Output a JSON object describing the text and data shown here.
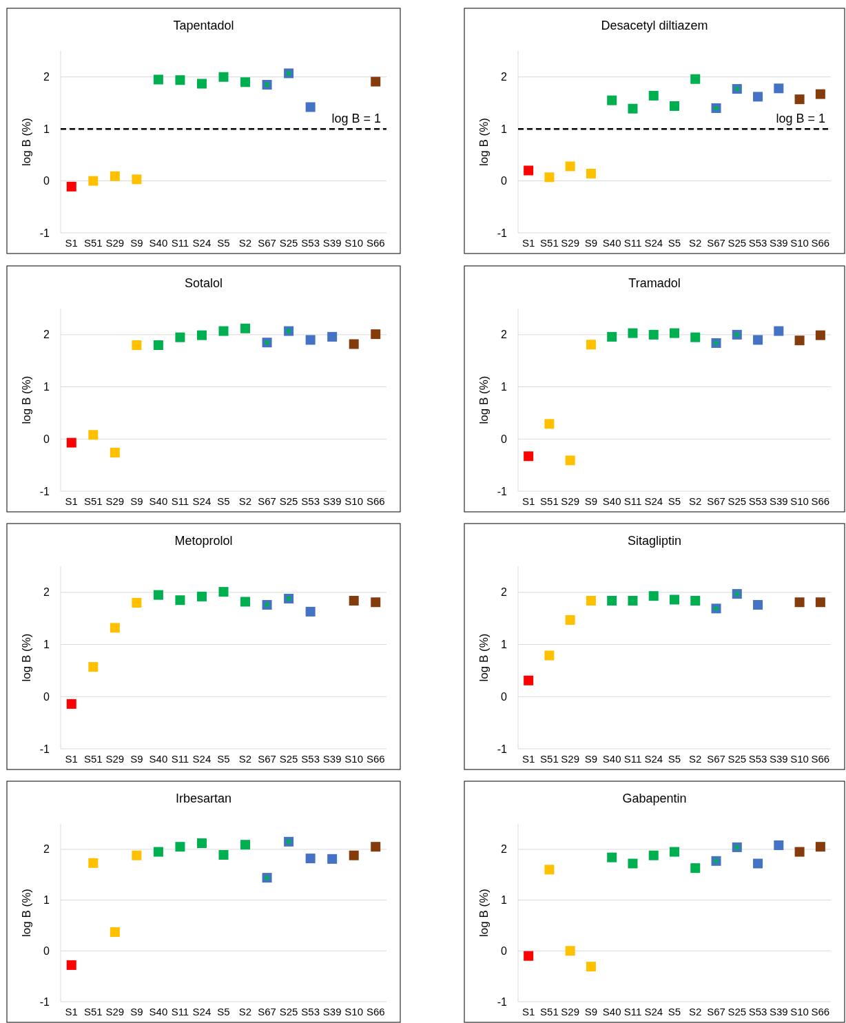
{
  "chart_data": [
    {
      "type": "scatter",
      "title": "Tapentadol",
      "ylabel": "log B (%)",
      "categories": [
        "S1",
        "S51",
        "S29",
        "S9",
        "S40",
        "S11",
        "S24",
        "S5",
        "S2",
        "S67",
        "S25",
        "S53",
        "S39",
        "S10",
        "S66"
      ],
      "ylim": [
        -1,
        2.5
      ],
      "yticks": [
        -1,
        0,
        1,
        2
      ],
      "grid": "y",
      "marker": "square",
      "ref_lines": [
        {
          "axis": "y",
          "value": 1,
          "label": "log  B = 1",
          "color": "#000000",
          "line_style": "dashed"
        }
      ],
      "series": [
        {
          "colors": [
            "#ff0000",
            "#ffc000",
            "#ffc000",
            "#ffc000",
            "#00b050",
            "#00b050",
            "#00b050",
            "#00b050",
            "#00b050",
            "#4472c4",
            "#4472c4",
            "#4472c4",
            null,
            null,
            "#843c0c"
          ],
          "values": [
            -0.11,
            0.0,
            0.09,
            0.03,
            1.95,
            1.94,
            1.87,
            2.0,
            1.9,
            1.85,
            2.07,
            1.42,
            null,
            null,
            1.91
          ]
        },
        {
          "color": "#00b050",
          "values": [
            null,
            null,
            null,
            null,
            null,
            null,
            null,
            null,
            null,
            1.85,
            2.07,
            null,
            null,
            null,
            null
          ]
        }
      ]
    },
    {
      "type": "scatter",
      "title": "Desacetyl diltiazem",
      "ylabel": "log B (%)",
      "categories": [
        "S1",
        "S51",
        "S29",
        "S9",
        "S40",
        "S11",
        "S24",
        "S5",
        "S2",
        "S67",
        "S25",
        "S53",
        "S39",
        "S10",
        "S66"
      ],
      "ylim": [
        -1,
        2.5
      ],
      "yticks": [
        -1,
        0,
        1,
        2
      ],
      "grid": "y",
      "marker": "square",
      "ref_lines": [
        {
          "axis": "y",
          "value": 1,
          "label": "log  B = 1",
          "color": "#000000",
          "line_style": "dashed"
        }
      ],
      "series": [
        {
          "colors": [
            "#ff0000",
            "#ffc000",
            "#ffc000",
            "#ffc000",
            "#00b050",
            "#00b050",
            "#00b050",
            "#00b050",
            "#00b050",
            "#4472c4",
            "#4472c4",
            "#4472c4",
            "#4472c4",
            "#843c0c",
            "#843c0c"
          ],
          "values": [
            0.2,
            0.07,
            0.28,
            0.14,
            1.55,
            1.39,
            1.64,
            1.44,
            1.96,
            1.4,
            1.77,
            1.62,
            1.78,
            1.57,
            1.67
          ]
        },
        {
          "color": "#00b050",
          "values": [
            null,
            null,
            null,
            null,
            null,
            null,
            null,
            null,
            null,
            1.4,
            1.77,
            null,
            null,
            null,
            null
          ]
        }
      ]
    },
    {
      "type": "scatter",
      "title": "Sotalol",
      "ylabel": "log B (%)",
      "categories": [
        "S1",
        "S51",
        "S29",
        "S9",
        "S40",
        "S11",
        "S24",
        "S5",
        "S2",
        "S67",
        "S25",
        "S53",
        "S39",
        "S10",
        "S66"
      ],
      "ylim": [
        -1,
        2.5
      ],
      "yticks": [
        -1,
        0,
        1,
        2
      ],
      "grid": "y",
      "marker": "square",
      "series": [
        {
          "colors": [
            "#ff0000",
            "#ffc000",
            "#ffc000",
            "#ffc000",
            "#00b050",
            "#00b050",
            "#00b050",
            "#00b050",
            "#00b050",
            "#4472c4",
            "#4472c4",
            "#4472c4",
            "#4472c4",
            "#843c0c",
            "#843c0c"
          ],
          "values": [
            -0.07,
            0.08,
            -0.26,
            1.8,
            1.8,
            1.95,
            1.99,
            2.07,
            2.12,
            1.85,
            2.07,
            1.9,
            1.96,
            1.82,
            2.01
          ]
        },
        {
          "color": "#00b050",
          "values": [
            null,
            null,
            null,
            null,
            null,
            null,
            null,
            null,
            null,
            1.85,
            2.07,
            null,
            null,
            null,
            null
          ]
        }
      ]
    },
    {
      "type": "scatter",
      "title": "Tramadol",
      "ylabel": "log B (%)",
      "categories": [
        "S1",
        "S51",
        "S29",
        "S9",
        "S40",
        "S11",
        "S24",
        "S5",
        "S2",
        "S67",
        "S25",
        "S53",
        "S39",
        "S10",
        "S66"
      ],
      "ylim": [
        -1,
        2.5
      ],
      "yticks": [
        -1,
        0,
        1,
        2
      ],
      "grid": "y",
      "marker": "square",
      "series": [
        {
          "colors": [
            "#ff0000",
            "#ffc000",
            "#ffc000",
            "#ffc000",
            "#00b050",
            "#00b050",
            "#00b050",
            "#00b050",
            "#00b050",
            "#4472c4",
            "#4472c4",
            "#4472c4",
            "#4472c4",
            "#843c0c",
            "#843c0c"
          ],
          "values": [
            -0.33,
            0.29,
            -0.41,
            1.81,
            1.96,
            2.03,
            2.0,
            2.03,
            1.95,
            1.84,
            2.0,
            1.9,
            2.07,
            1.89,
            1.99
          ]
        },
        {
          "color": "#00b050",
          "values": [
            null,
            null,
            null,
            null,
            null,
            null,
            null,
            null,
            null,
            1.84,
            2.0,
            null,
            null,
            null,
            null
          ]
        }
      ]
    },
    {
      "type": "scatter",
      "title": "Metoprolol",
      "ylabel": "log B (%)",
      "categories": [
        "S1",
        "S51",
        "S29",
        "S9",
        "S40",
        "S11",
        "S24",
        "S5",
        "S2",
        "S67",
        "S25",
        "S53",
        "S39",
        "S10",
        "S66"
      ],
      "ylim": [
        -1,
        2.5
      ],
      "yticks": [
        -1,
        0,
        1,
        2
      ],
      "grid": "y",
      "marker": "square",
      "series": [
        {
          "colors": [
            "#ff0000",
            "#ffc000",
            "#ffc000",
            "#ffc000",
            "#00b050",
            "#00b050",
            "#00b050",
            "#00b050",
            "#00b050",
            "#4472c4",
            "#4472c4",
            "#4472c4",
            null,
            "#843c0c",
            "#843c0c"
          ],
          "values": [
            -0.14,
            0.57,
            1.32,
            1.8,
            1.95,
            1.85,
            1.92,
            2.01,
            1.82,
            1.76,
            1.88,
            1.63,
            null,
            1.84,
            1.81
          ]
        },
        {
          "color": "#00b050",
          "values": [
            null,
            null,
            null,
            null,
            null,
            null,
            null,
            null,
            null,
            1.76,
            1.88,
            null,
            null,
            null,
            null
          ]
        }
      ]
    },
    {
      "type": "scatter",
      "title": "Sitagliptin",
      "ylabel": "log B (%)",
      "categories": [
        "S1",
        "S51",
        "S29",
        "S9",
        "S40",
        "S11",
        "S24",
        "S5",
        "S2",
        "S67",
        "S25",
        "S53",
        "S39",
        "S10",
        "S66"
      ],
      "ylim": [
        -1,
        2.5
      ],
      "yticks": [
        -1,
        0,
        1,
        2
      ],
      "grid": "y",
      "marker": "square",
      "series": [
        {
          "colors": [
            "#ff0000",
            "#ffc000",
            "#ffc000",
            "#ffc000",
            "#00b050",
            "#00b050",
            "#00b050",
            "#00b050",
            "#00b050",
            "#4472c4",
            "#4472c4",
            "#4472c4",
            null,
            "#843c0c",
            "#843c0c"
          ],
          "values": [
            0.31,
            0.79,
            1.47,
            1.84,
            1.84,
            1.84,
            1.93,
            1.86,
            1.84,
            1.69,
            1.97,
            1.76,
            null,
            1.81,
            1.81
          ]
        },
        {
          "color": "#00b050",
          "values": [
            null,
            null,
            null,
            null,
            null,
            null,
            null,
            null,
            null,
            1.69,
            1.97,
            null,
            null,
            null,
            null
          ]
        }
      ]
    },
    {
      "type": "scatter",
      "title": "Irbesartan",
      "ylabel": "log B (%)",
      "categories": [
        "S1",
        "S51",
        "S29",
        "S9",
        "S40",
        "S11",
        "S24",
        "S5",
        "S2",
        "S67",
        "S25",
        "S53",
        "S39",
        "S10",
        "S66"
      ],
      "ylim": [
        -1,
        2.5
      ],
      "yticks": [
        -1,
        0,
        1,
        2
      ],
      "grid": "y",
      "marker": "square",
      "series": [
        {
          "colors": [
            "#ff0000",
            "#ffc000",
            "#ffc000",
            "#ffc000",
            "#00b050",
            "#00b050",
            "#00b050",
            "#00b050",
            "#00b050",
            "#4472c4",
            "#4472c4",
            "#4472c4",
            "#4472c4",
            "#843c0c",
            "#843c0c"
          ],
          "values": [
            -0.28,
            1.73,
            0.37,
            1.88,
            1.95,
            2.05,
            2.12,
            1.89,
            2.09,
            1.44,
            2.15,
            1.82,
            1.81,
            1.88,
            2.05
          ]
        },
        {
          "color": "#00b050",
          "values": [
            null,
            null,
            null,
            null,
            null,
            null,
            null,
            null,
            null,
            1.44,
            2.15,
            null,
            null,
            null,
            null
          ]
        }
      ]
    },
    {
      "type": "scatter",
      "title": "Gabapentin",
      "ylabel": "log B (%)",
      "categories": [
        "S1",
        "S51",
        "S29",
        "S9",
        "S40",
        "S11",
        "S24",
        "S5",
        "S2",
        "S67",
        "S25",
        "S53",
        "S39",
        "S10",
        "S66"
      ],
      "ylim": [
        -1,
        2.5
      ],
      "yticks": [
        -1,
        0,
        1,
        2
      ],
      "grid": "y",
      "marker": "square",
      "series": [
        {
          "colors": [
            "#ff0000",
            "#ffc000",
            "#ffc000",
            "#ffc000",
            "#00b050",
            "#00b050",
            "#00b050",
            "#00b050",
            "#00b050",
            "#4472c4",
            "#4472c4",
            "#4472c4",
            "#4472c4",
            "#843c0c",
            "#843c0c"
          ],
          "values": [
            -0.1,
            1.6,
            0.0,
            -0.31,
            1.84,
            1.72,
            1.88,
            1.95,
            1.63,
            1.77,
            2.04,
            1.72,
            2.08,
            1.95,
            2.05
          ]
        },
        {
          "color": "#00b050",
          "values": [
            null,
            null,
            null,
            null,
            null,
            null,
            null,
            null,
            null,
            1.77,
            2.04,
            null,
            null,
            null,
            null
          ]
        }
      ]
    }
  ]
}
